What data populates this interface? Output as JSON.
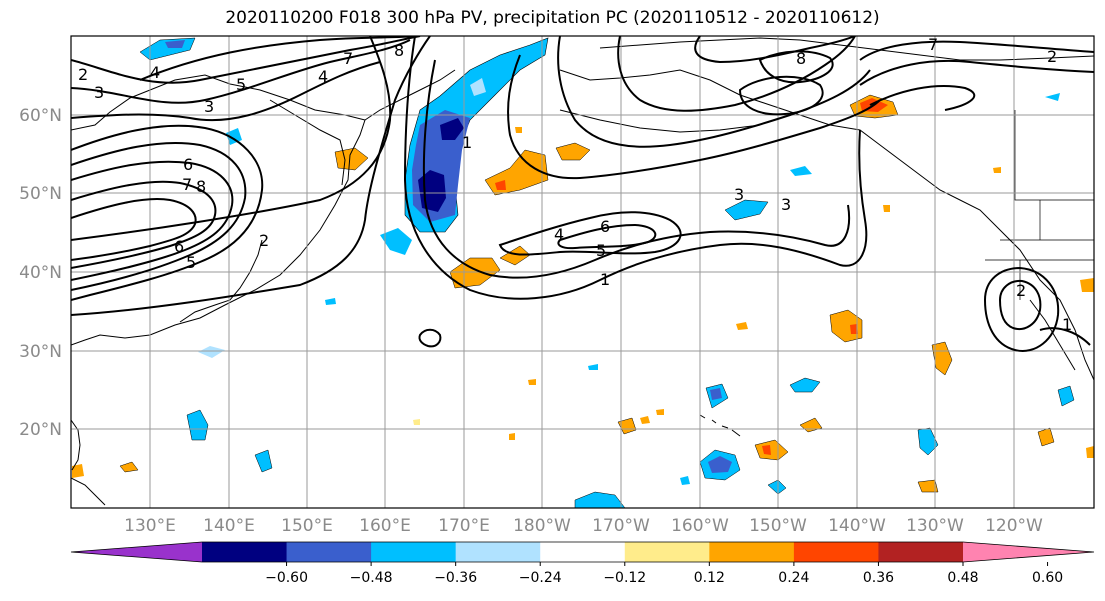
{
  "title": "2020110200 F018 300 hPa PV, precipitation PC (2020110512 - 2020110612)",
  "map": {
    "lat_labels": [
      "60°N",
      "50°N",
      "40°N",
      "30°N",
      "20°N"
    ],
    "lon_labels": [
      "130°E",
      "140°E",
      "150°E",
      "160°E",
      "170°E",
      "180°W",
      "170°W",
      "160°W",
      "150°W",
      "140°W",
      "130°W",
      "120°W"
    ],
    "contour_labels": [
      "2",
      "3",
      "4",
      "5",
      "6",
      "7",
      "8",
      "3",
      "4",
      "5",
      "6",
      "7",
      "8",
      "1",
      "2",
      "3",
      "4",
      "5",
      "6",
      "7",
      "8",
      "1",
      "2",
      "3",
      "2",
      "1"
    ],
    "contour_color": "#000000",
    "coastline_color": "#000000",
    "grid_color": "#9a9a9a"
  },
  "colorbar": {
    "ticks": [
      "−0.60",
      "−0.48",
      "−0.36",
      "−0.24",
      "−0.12",
      "0.12",
      "0.24",
      "0.36",
      "0.48",
      "0.60"
    ],
    "colors": [
      "#9932cc",
      "#000080",
      "#3a5fcd",
      "#00bfff",
      "#b0e2ff",
      "#ffffff",
      "#ffec8b",
      "#ffa500",
      "#ff4500",
      "#b22222",
      "#ff83b0"
    ],
    "extend": "both"
  }
}
